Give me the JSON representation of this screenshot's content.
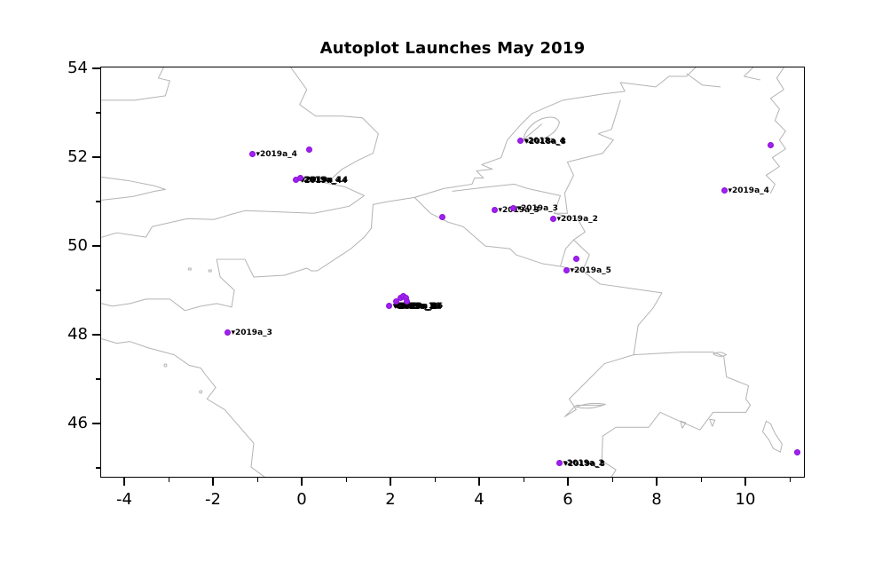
{
  "title": "Autoplot Launches May 2019",
  "figure": {
    "background": "#ffffff",
    "axis_color": "#000000",
    "coast_color": "#b3b3b3",
    "basemap": "western-europe-coastlines"
  },
  "chart_data": {
    "type": "scatter",
    "title": "Autoplot Launches May 2019",
    "xlabel": "",
    "ylabel": "",
    "xlim": [
      -4.54,
      11.34
    ],
    "ylim": [
      44.78,
      54.04
    ],
    "x_major_ticks": [
      -4,
      -2,
      0,
      2,
      4,
      6,
      8,
      10
    ],
    "x_minor_ticks": [
      -3,
      -1,
      1,
      3,
      5,
      7,
      9,
      11
    ],
    "y_major_ticks": [
      46,
      48,
      50,
      52,
      54
    ],
    "y_minor_ticks": [
      45,
      47,
      49,
      51,
      53
    ],
    "grid": false,
    "legend": "none",
    "marker_color": "#a020f0",
    "marker_edge_color": "#8a12d8",
    "marker_size_px": 7,
    "label_marker": "▾",
    "label_color": "#000000",
    "points": [
      {
        "lon": -1.14,
        "lat": 52.1,
        "labels": [
          "2019a_4"
        ]
      },
      {
        "lon": 0.14,
        "lat": 52.2,
        "labels": []
      },
      {
        "lon": -0.16,
        "lat": 51.52,
        "labels": [
          "2019a_4",
          "2019a_44",
          "2019a_14"
        ]
      },
      {
        "lon": -0.06,
        "lat": 51.56,
        "labels": []
      },
      {
        "lon": 3.14,
        "lat": 50.68,
        "labels": []
      },
      {
        "lon": 4.32,
        "lat": 50.84,
        "labels": [
          "2019a_3"
        ]
      },
      {
        "lon": 4.74,
        "lat": 50.88,
        "labels": [
          "2019a_3"
        ]
      },
      {
        "lon": 5.64,
        "lat": 50.64,
        "labels": [
          "2019a_2"
        ]
      },
      {
        "lon": 4.9,
        "lat": 52.4,
        "labels": [
          "2018a_4",
          "2018a_8"
        ]
      },
      {
        "lon": 10.54,
        "lat": 52.3,
        "labels": []
      },
      {
        "lon": 9.5,
        "lat": 51.28,
        "labels": [
          "2019a_4"
        ]
      },
      {
        "lon": 6.16,
        "lat": 49.74,
        "labels": []
      },
      {
        "lon": 5.94,
        "lat": 49.48,
        "labels": [
          "2019a_5"
        ]
      },
      {
        "lon": 1.94,
        "lat": 48.68,
        "labels": [
          "2019a_1a",
          "2019a_1b",
          "2019a_11",
          "2019a_14",
          "2019a_16"
        ]
      },
      {
        "lon": 2.1,
        "lat": 48.78,
        "labels": []
      },
      {
        "lon": 2.2,
        "lat": 48.86,
        "labels": []
      },
      {
        "lon": 2.26,
        "lat": 48.9,
        "labels": []
      },
      {
        "lon": 2.32,
        "lat": 48.86,
        "labels": []
      },
      {
        "lon": 2.34,
        "lat": 48.78,
        "labels": []
      },
      {
        "lon": -1.7,
        "lat": 48.08,
        "labels": [
          "2019a_3"
        ]
      },
      {
        "lon": 5.78,
        "lat": 45.14,
        "labels": [
          "2019a_2",
          "2019a_8"
        ]
      },
      {
        "lon": 11.14,
        "lat": 45.38,
        "labels": []
      }
    ]
  }
}
